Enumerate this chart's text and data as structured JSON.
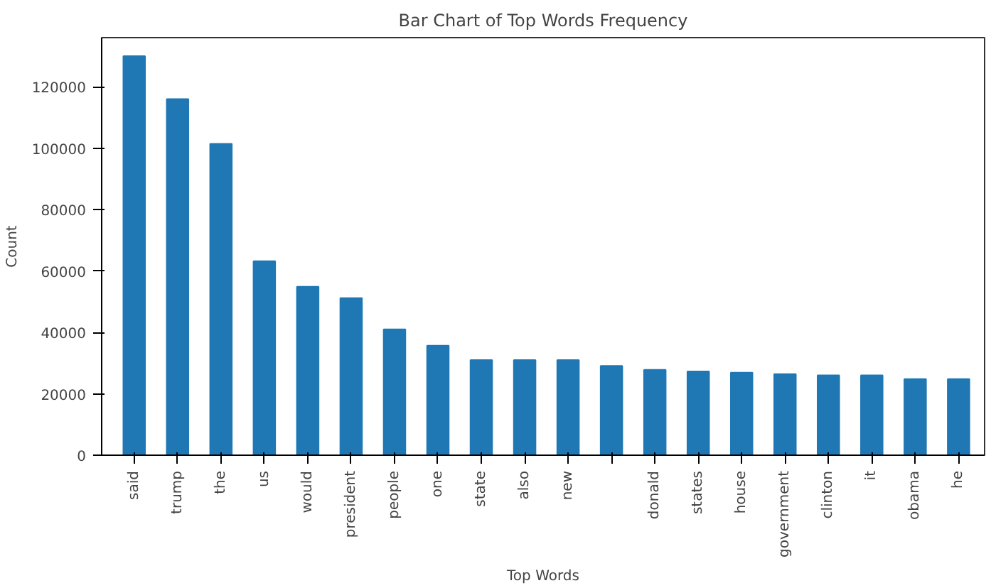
{
  "chart_data": {
    "type": "bar",
    "title": "Bar Chart of Top Words Frequency",
    "xlabel": "Top Words",
    "ylabel": "Count",
    "categories": [
      "said",
      "trump",
      "the",
      "us",
      "would",
      "president",
      "people",
      "one",
      "state",
      "also",
      "new",
      null,
      "donald",
      "states",
      "house",
      "government",
      "clinton",
      "it",
      "obama",
      "he"
    ],
    "values": [
      130000,
      116000,
      101400,
      63200,
      54900,
      51200,
      41000,
      35700,
      31000,
      31000,
      31000,
      29100,
      27800,
      27300,
      26900,
      26400,
      26000,
      26000,
      24800,
      24800
    ],
    "color": "#1f77b4",
    "ylim": [
      0,
      136000
    ],
    "yticks": [
      0,
      20000,
      40000,
      60000,
      80000,
      100000,
      120000
    ],
    "grid": false
  }
}
